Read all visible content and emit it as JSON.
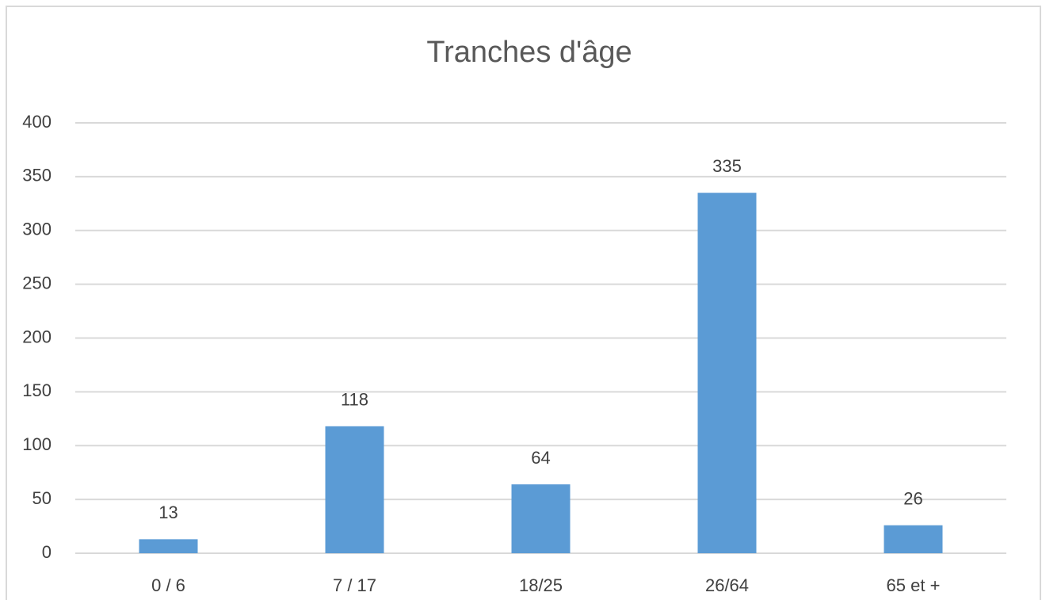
{
  "chart_data": {
    "type": "bar",
    "title": "Tranches d'âge",
    "categories": [
      "0 / 6",
      "7 / 17",
      "18/25",
      "26/64",
      "65 et +"
    ],
    "values": [
      13,
      118,
      64,
      335,
      26
    ],
    "color": "#5b9bd5",
    "ylim": [
      0,
      400
    ],
    "yticks": [
      0,
      50,
      100,
      150,
      200,
      250,
      300,
      350,
      400
    ],
    "grid": true
  }
}
